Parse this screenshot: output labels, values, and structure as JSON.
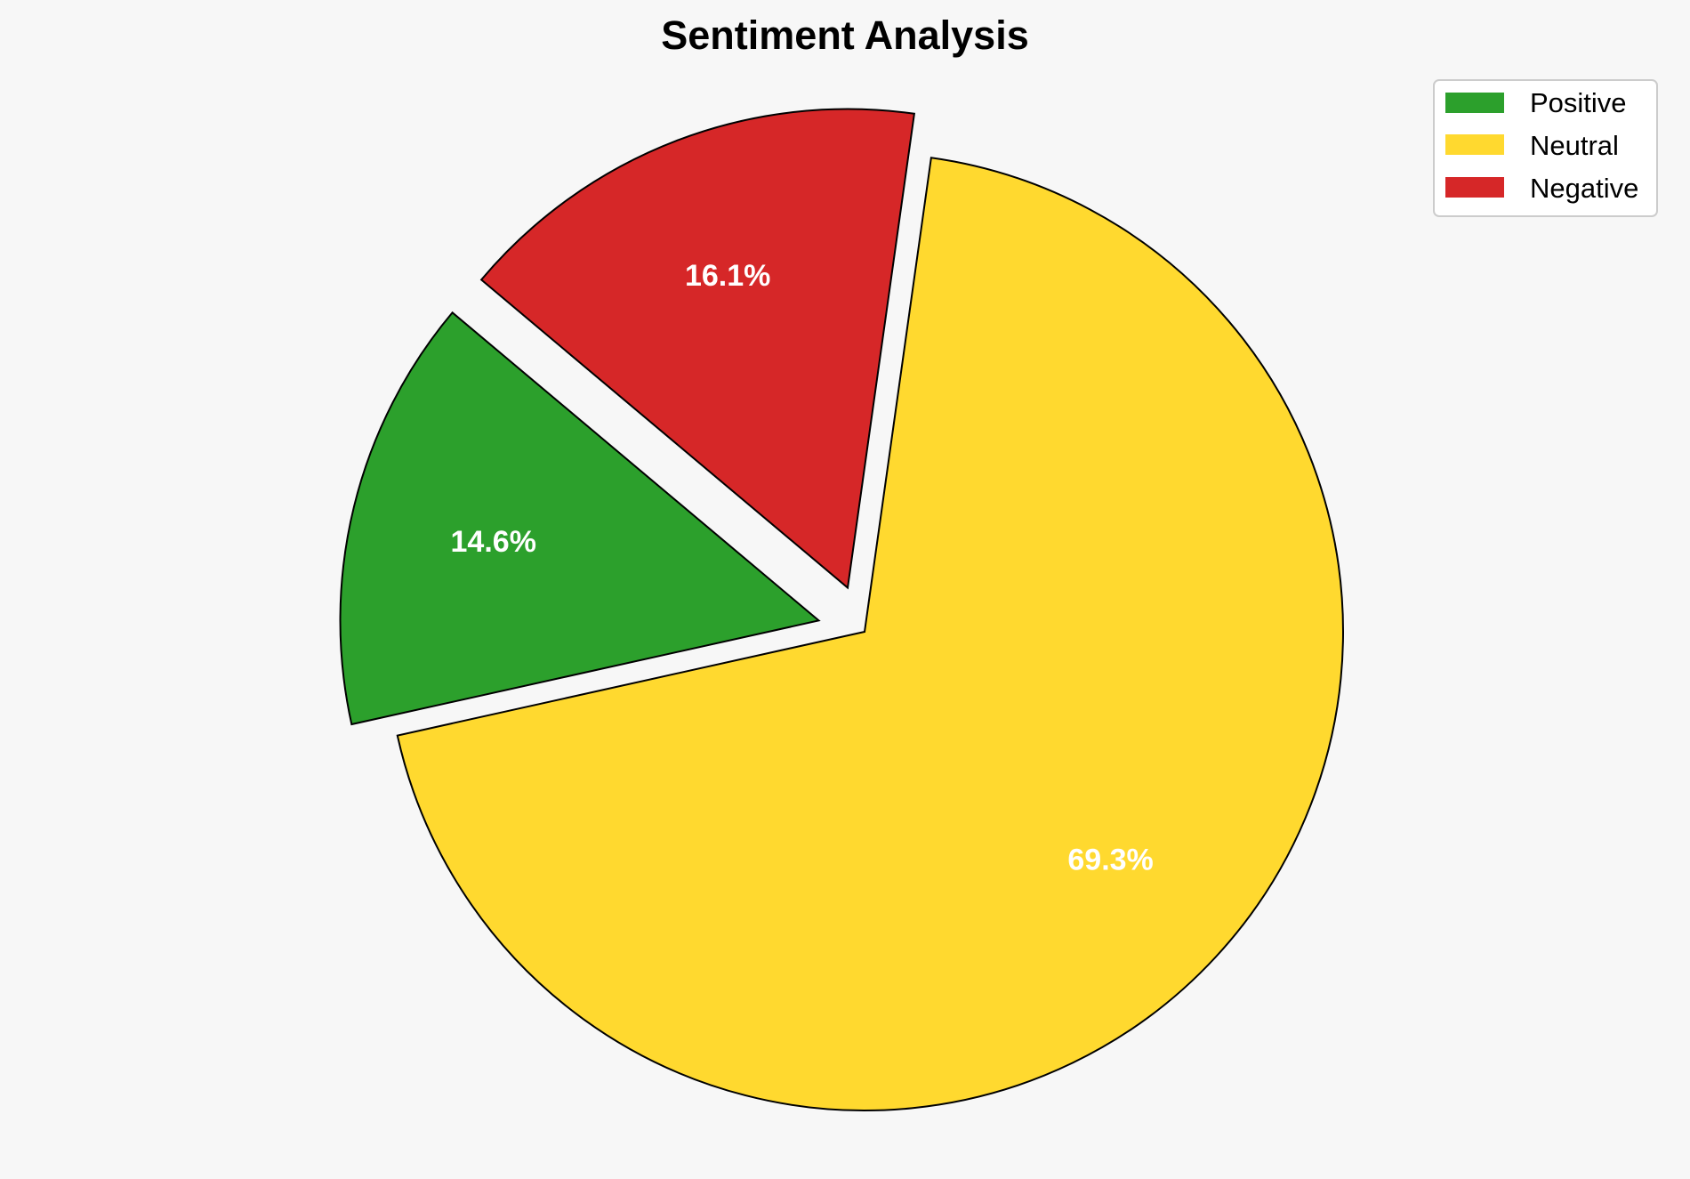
{
  "chart_data": {
    "type": "pie",
    "title": "Sentiment Analysis",
    "categories": [
      "Positive",
      "Neutral",
      "Negative"
    ],
    "values": [
      14.6,
      69.3,
      16.1
    ],
    "labels": [
      "14.6%",
      "69.3%",
      "16.1%"
    ],
    "colors": [
      "#2ca02c",
      "#ffd92f",
      "#d62728"
    ],
    "exploded": [
      true,
      false,
      true
    ],
    "legend": {
      "placement": "top-right",
      "entries": [
        "Positive",
        "Neutral",
        "Negative"
      ]
    }
  }
}
